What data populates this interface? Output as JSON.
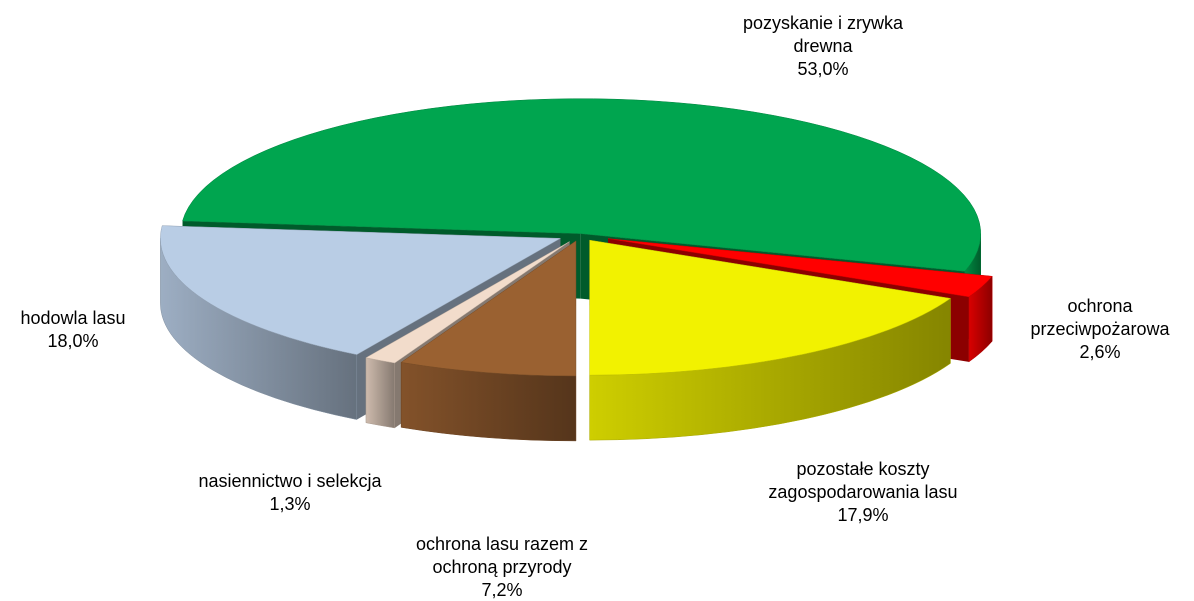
{
  "chart_data": {
    "type": "pie3d",
    "categories": [
      "pozyskanie i zrywka drewna",
      "ochrona przeciwpożarowa",
      "pozostałe koszty zagospodarowania lasu",
      "ochrona lasu razem z ochroną przyrody",
      "nasiennictwo i selekcja",
      "hodowla lasu"
    ],
    "values": [
      53.0,
      2.6,
      17.9,
      7.2,
      1.3,
      18.0
    ],
    "value_labels": [
      "53,0%",
      "2,6%",
      "17,9%",
      "7,2%",
      "1,3%",
      "18,0%"
    ],
    "colors": [
      "#00a54f",
      "#ff0000",
      "#f2f200",
      "#9a6131",
      "#f2dccb",
      "#b9cde5"
    ]
  }
}
